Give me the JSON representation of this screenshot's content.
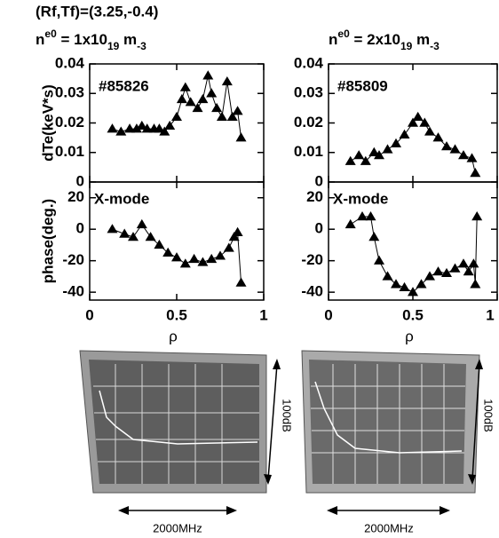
{
  "figure_title": "(Rf,Tf)=(3.25,-0.4)",
  "chart_data": [
    {
      "type": "line",
      "subtitle": [
        "n",
        "e0",
        " = 1x10",
        "19",
        " m",
        "-3"
      ],
      "ylabel": "dTe(keV*s)",
      "annotation": "#85826",
      "color": "#000000",
      "xtick_labels": false,
      "xlim": [
        0,
        1
      ],
      "xticks": [
        0,
        0.5,
        1
      ],
      "ylim": [
        0,
        0.04
      ],
      "yticks": [
        0,
        0.01,
        0.02,
        0.03,
        0.04
      ],
      "x": [
        0.13,
        0.18,
        0.23,
        0.27,
        0.3,
        0.33,
        0.37,
        0.4,
        0.43,
        0.46,
        0.5,
        0.53,
        0.55,
        0.58,
        0.62,
        0.65,
        0.68,
        0.7,
        0.73,
        0.76,
        0.79,
        0.82,
        0.85,
        0.87
      ],
      "values": [
        0.018,
        0.017,
        0.018,
        0.018,
        0.019,
        0.018,
        0.018,
        0.018,
        0.017,
        0.019,
        0.022,
        0.028,
        0.032,
        0.027,
        0.025,
        0.028,
        0.036,
        0.03,
        0.025,
        0.022,
        0.034,
        0.022,
        0.024,
        0.015
      ]
    },
    {
      "type": "line",
      "subtitle": [
        "n",
        "e0",
        " = 2x10",
        "19",
        " m",
        "-3"
      ],
      "annotation": "#85809",
      "color": "#000000",
      "xtick_labels": false,
      "xlim": [
        0,
        1
      ],
      "xticks": [
        0,
        0.5,
        1
      ],
      "ylim": [
        0,
        0.04
      ],
      "yticks": [
        0,
        0.01,
        0.02,
        0.03,
        0.04
      ],
      "x": [
        0.13,
        0.18,
        0.22,
        0.27,
        0.3,
        0.35,
        0.4,
        0.45,
        0.5,
        0.53,
        0.57,
        0.6,
        0.65,
        0.7,
        0.75,
        0.8,
        0.85,
        0.87
      ],
      "values": [
        0.007,
        0.009,
        0.007,
        0.01,
        0.009,
        0.011,
        0.013,
        0.016,
        0.02,
        0.022,
        0.02,
        0.017,
        0.015,
        0.012,
        0.011,
        0.009,
        0.008,
        0.003
      ]
    },
    {
      "type": "line",
      "ylabel": "phase(deg.)",
      "xlabel": "ρ",
      "annotation": "X-mode",
      "color": "#000000",
      "xtick_labels": true,
      "xlim": [
        0,
        1
      ],
      "xticks": [
        0,
        0.5,
        1
      ],
      "ylim": [
        -45,
        30
      ],
      "yticks": [
        -40,
        -20,
        0,
        20
      ],
      "x": [
        0.13,
        0.2,
        0.25,
        0.3,
        0.35,
        0.4,
        0.45,
        0.5,
        0.55,
        0.6,
        0.65,
        0.7,
        0.75,
        0.8,
        0.83,
        0.85,
        0.87
      ],
      "values": [
        0,
        -3,
        -5,
        3,
        -5,
        -10,
        -15,
        -18,
        -22,
        -19,
        -21,
        -19,
        -17,
        -12,
        -5,
        -2,
        -34
      ]
    },
    {
      "type": "line",
      "xlabel": "ρ",
      "annotation": "X-mode",
      "color": "#000000",
      "xtick_labels": true,
      "xlim": [
        0,
        1
      ],
      "xticks": [
        0,
        0.5,
        1
      ],
      "ylim": [
        -45,
        30
      ],
      "yticks": [
        -40,
        -20,
        0,
        20
      ],
      "x": [
        0.13,
        0.2,
        0.25,
        0.27,
        0.3,
        0.35,
        0.4,
        0.45,
        0.5,
        0.55,
        0.6,
        0.65,
        0.7,
        0.75,
        0.8,
        0.83,
        0.86,
        0.87,
        0.88
      ],
      "values": [
        3,
        8,
        8,
        -5,
        -20,
        -30,
        -35,
        -37,
        -40,
        -35,
        -30,
        -27,
        -28,
        -25,
        -22,
        -27,
        -22,
        -35,
        8
      ]
    }
  ],
  "photos": [
    {
      "vertical_label": "100dB",
      "horizontal_label": "2000MHz"
    },
    {
      "vertical_label": "100dB",
      "horizontal_label": "2000MHz"
    }
  ]
}
